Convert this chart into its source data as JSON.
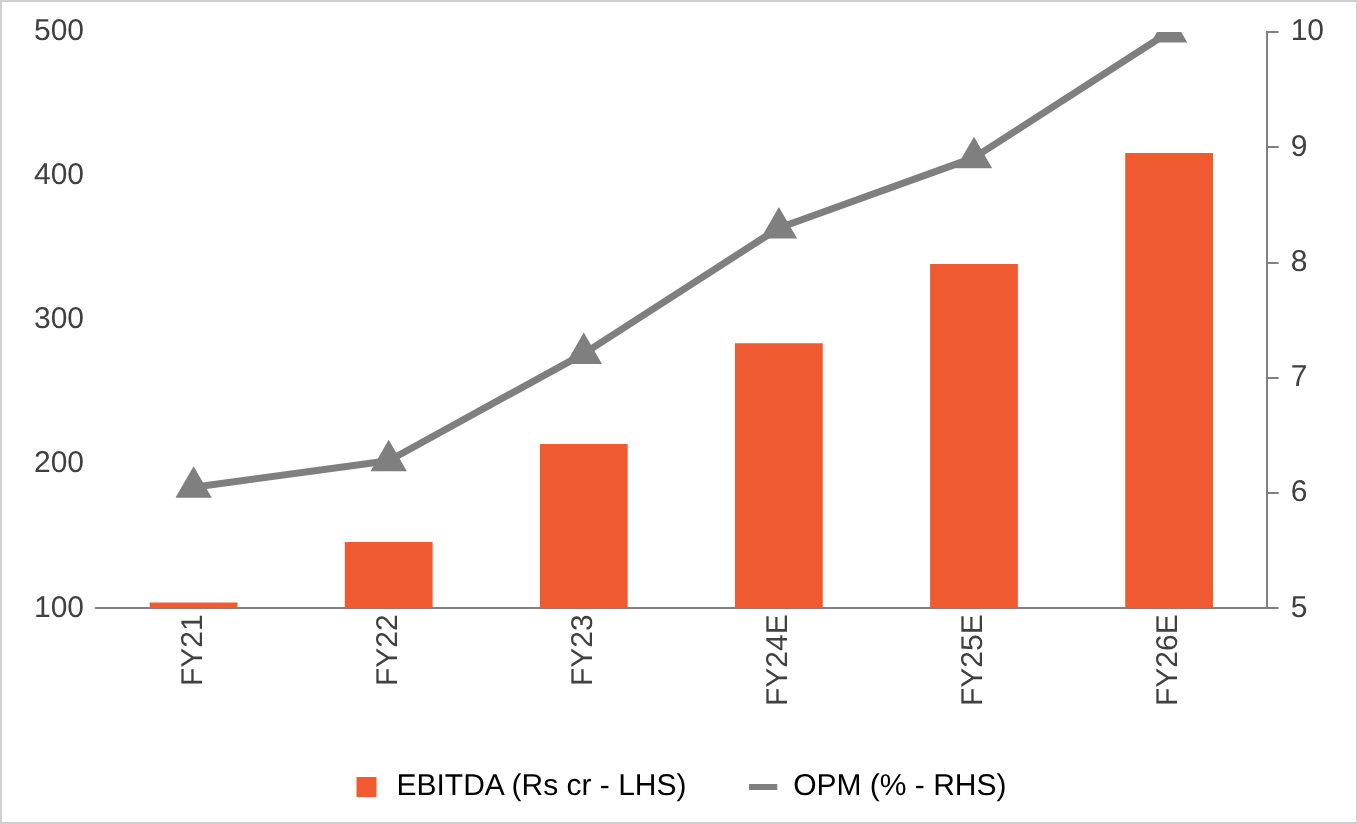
{
  "chart_data": {
    "type": "bar",
    "categories": [
      "FY21",
      "FY22",
      "FY23",
      "FY24E",
      "FY25E",
      "FY26E"
    ],
    "series": [
      {
        "name": "EBITDA (Rs cr - LHS)",
        "color": "#f05a30",
        "values": [
          104,
          146,
          214,
          284,
          339,
          416
        ]
      },
      {
        "name": "OPM (% - RHS)",
        "type": "line",
        "axis": "y2",
        "color": "#7f7f7f",
        "marker": "triangle",
        "values": [
          6.05,
          6.28,
          7.21,
          8.3,
          8.91,
          10.0
        ]
      }
    ],
    "ylim": [
      100,
      500
    ],
    "yticks": [
      100,
      200,
      300,
      400,
      500
    ],
    "y2lim": [
      5,
      10
    ],
    "y2ticks": [
      5,
      6,
      7,
      8,
      9,
      10
    ],
    "grid": false,
    "legend": "bottom"
  }
}
